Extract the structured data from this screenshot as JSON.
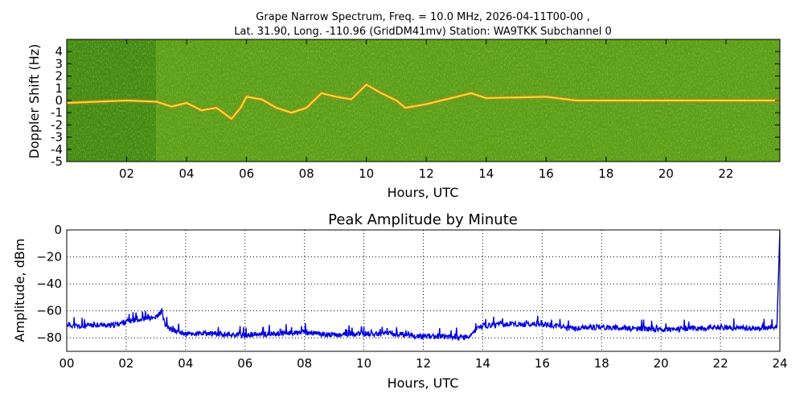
{
  "chart_data": [
    {
      "type": "heatmap",
      "title_line1": "Grape Narrow Spectrum, Freq. = 10.0 MHz, 2026-04-11T00-00 ,",
      "title_line2": "Lat.  31.90, Long. -110.96 (GridDM41mv) Station: WA9TKK Subchannel 0",
      "xlabel": "Hours, UTC",
      "ylabel": "Doppler Shift (Hz)",
      "xlim": [
        0,
        23.8
      ],
      "ylim": [
        -5,
        5
      ],
      "x_ticks": [
        2,
        4,
        6,
        8,
        10,
        12,
        14,
        16,
        18,
        20,
        22
      ],
      "x_tick_labels": [
        "02",
        "04",
        "06",
        "08",
        "10",
        "12",
        "14",
        "16",
        "18",
        "20",
        "22"
      ],
      "y_ticks": [
        4,
        3,
        2,
        1,
        0,
        -1,
        -2,
        -3,
        -4,
        -5
      ],
      "y_tick_labels": [
        "4",
        "3",
        "2",
        "1",
        "0",
        "-1",
        "-2",
        "-3",
        "-4",
        "-5"
      ],
      "colors": {
        "background": "#5a9e1a",
        "dark": "#2f7a12",
        "trace": "#e8e030",
        "hot": "#ff6020"
      },
      "doppler_trace": [
        [
          0.0,
          -0.2
        ],
        [
          1.0,
          -0.1
        ],
        [
          2.0,
          0.0
        ],
        [
          3.0,
          -0.1
        ],
        [
          3.5,
          -0.5
        ],
        [
          4.0,
          -0.2
        ],
        [
          4.5,
          -0.8
        ],
        [
          5.0,
          -0.6
        ],
        [
          5.5,
          -1.5
        ],
        [
          5.8,
          -0.6
        ],
        [
          6.0,
          0.3
        ],
        [
          6.5,
          0.1
        ],
        [
          7.0,
          -0.6
        ],
        [
          7.5,
          -1.0
        ],
        [
          8.0,
          -0.6
        ],
        [
          8.5,
          0.6
        ],
        [
          9.0,
          0.3
        ],
        [
          9.5,
          0.1
        ],
        [
          10.0,
          1.3
        ],
        [
          10.5,
          0.6
        ],
        [
          11.0,
          0.0
        ],
        [
          11.3,
          -0.6
        ],
        [
          12.0,
          -0.3
        ],
        [
          13.5,
          0.6
        ],
        [
          14.0,
          0.2
        ],
        [
          16.0,
          0.3
        ],
        [
          17.0,
          0.0
        ],
        [
          18.0,
          0.0
        ],
        [
          20.0,
          0.0
        ],
        [
          22.0,
          0.0
        ],
        [
          23.8,
          0.0
        ]
      ]
    },
    {
      "type": "line",
      "title": "Peak Amplitude by Minute",
      "xlabel": "Hours, UTC",
      "ylabel": "Amplitude, dBm",
      "xlim": [
        0,
        24
      ],
      "ylim": [
        -90,
        0
      ],
      "grid": true,
      "line_color": "#0000dd",
      "x_ticks": [
        0,
        2,
        4,
        6,
        8,
        10,
        12,
        14,
        16,
        18,
        20,
        22,
        24
      ],
      "x_tick_labels": [
        "00",
        "02",
        "04",
        "06",
        "08",
        "10",
        "12",
        "14",
        "16",
        "18",
        "20",
        "22",
        "24"
      ],
      "y_ticks": [
        0,
        -20,
        -40,
        -60,
        -80
      ],
      "y_tick_labels": [
        "0",
        "−20",
        "−40",
        "−60",
        "−80"
      ],
      "series": [
        {
          "x": [
            0.0,
            0.5,
            1.0,
            1.5,
            2.0,
            2.5,
            3.0,
            3.2,
            3.3,
            3.5,
            4.0,
            5.0,
            6.0,
            7.0,
            8.0,
            9.0,
            10.0,
            11.0,
            12.0,
            13.0,
            13.5,
            13.8,
            14.0,
            15.0,
            16.0,
            17.0,
            18.0,
            19.0,
            20.0,
            21.0,
            22.0,
            23.0,
            23.9,
            24.0
          ],
          "y": [
            -70,
            -72,
            -70,
            -71,
            -68,
            -66,
            -65,
            -60,
            -70,
            -74,
            -77,
            -77,
            -78,
            -77,
            -76,
            -78,
            -77,
            -77,
            -79,
            -79,
            -80,
            -74,
            -71,
            -70,
            -70,
            -73,
            -72,
            -73,
            -74,
            -73,
            -72,
            -73,
            -72,
            0
          ]
        }
      ]
    }
  ]
}
